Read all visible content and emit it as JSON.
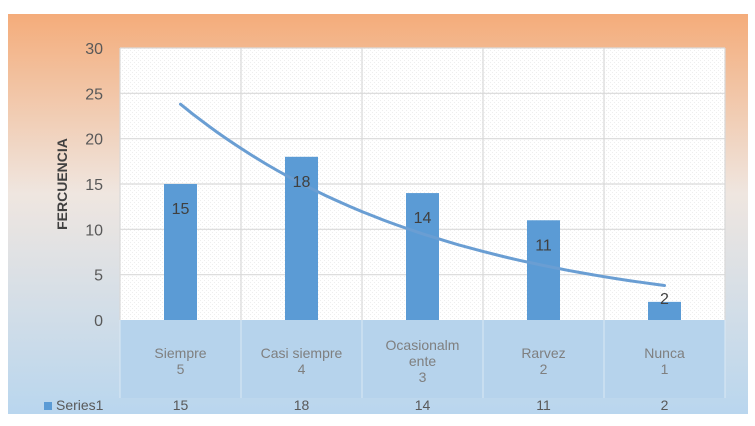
{
  "chart_data": {
    "type": "bar",
    "ylabel": "FERCUENCIA",
    "ylim": [
      0,
      30
    ],
    "yticks": [
      0,
      5,
      10,
      15,
      20,
      25,
      30
    ],
    "grid": true,
    "categories": [
      {
        "lines": [
          "Siempre",
          "5"
        ]
      },
      {
        "lines": [
          "Casi siempre",
          "4"
        ]
      },
      {
        "lines": [
          "Ocasionalm",
          "ente",
          "3"
        ]
      },
      {
        "lines": [
          "Rarvez",
          "2"
        ]
      },
      {
        "lines": [
          "Nunca",
          "1"
        ]
      }
    ],
    "series": [
      {
        "name": "Series1",
        "values": [
          15,
          18,
          14,
          11,
          2
        ]
      }
    ],
    "trendline": {
      "type": "exponential",
      "start": 23.8,
      "end": 3.8
    },
    "legend": "data-table",
    "colors": {
      "bar": "#5b9bd5",
      "trend": "#5b9bd5",
      "top_gradient": "#f4b183",
      "bottom_gradient": "#bdd7ee"
    }
  }
}
